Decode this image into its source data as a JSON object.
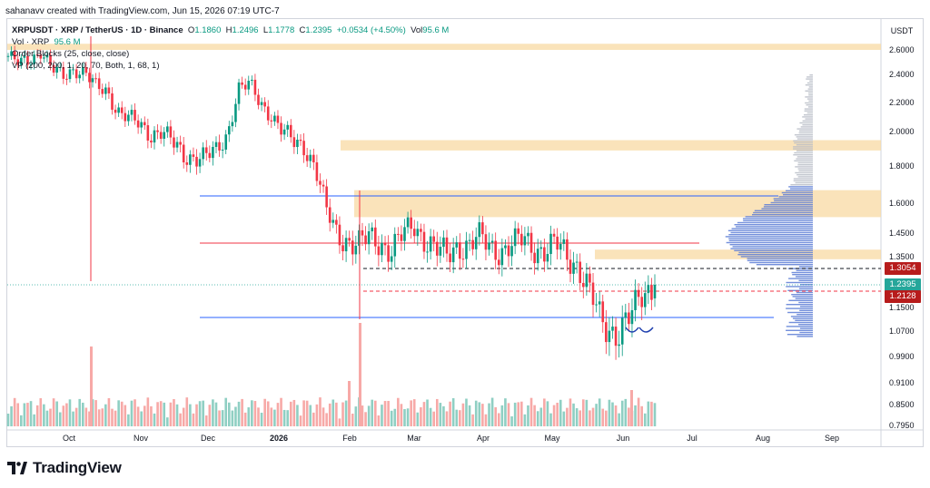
{
  "header": {
    "note": "sahanavv created with TradingView.com, Jun 15, 2026 07:19 UTC-7"
  },
  "legend": {
    "symbol": "XRPUSDT · XRP / TetherUS · 1D · Binance",
    "o_label": "O",
    "o_value": "1.1860",
    "h_label": "H",
    "h_value": "1.2496",
    "l_label": "L",
    "l_value": "1.1778",
    "c_label": "C",
    "c_value": "1.2395",
    "change": "+0.0534 (+4.50%)",
    "vol_label": "Vol",
    "vol_value": "95.6 M",
    "vol_line_label": "Vol · XRP",
    "vol_line_value": "95.6 M",
    "order_blocks": "Order Blocks (25, close, close)",
    "vp": "VP (200, 200, 1, 20, 70, Both, 1, 68, 1)"
  },
  "colors": {
    "up": "#089981",
    "down": "#f23645",
    "up_vol": "#8fcfc3",
    "down_vol": "#f7a9a7",
    "zone": "#f8d9a3",
    "blue_line": "#2962ff",
    "red_line": "#f23645",
    "vp_blue": "#5b7bd5",
    "vp_grey": "#b7bcc6",
    "marker_red": "#b71c1c",
    "marker_price": "#26a69a"
  },
  "price_tags": {
    "resistance": "1.3054",
    "current": "1.2395",
    "support": "1.2128"
  },
  "brand": {
    "name": "TradingView",
    "icon": "tradingview-logo-icon"
  },
  "chart_data": {
    "type": "candlestick",
    "symbol": "XRPUSDT",
    "interval": "1D",
    "exchange": "Binance",
    "currency": "USDT",
    "y_axis_ticks": [
      "2.6000",
      "2.4000",
      "2.2000",
      "2.0000",
      "1.8000",
      "1.6000",
      "1.4500",
      "1.3500",
      "1.1500",
      "1.0700",
      "0.9900",
      "0.9100",
      "0.8500",
      "0.7950"
    ],
    "x_axis_ticks": [
      "Oct",
      "Nov",
      "Dec",
      "2026",
      "Feb",
      "Mar",
      "Apr",
      "May",
      "Jun",
      "Jul",
      "Aug",
      "Sep"
    ],
    "ohlc_close_path": [
      2.55,
      2.48,
      2.52,
      2.6,
      2.44,
      2.38,
      2.45,
      2.42,
      2.3,
      2.28,
      2.15,
      2.09,
      2.04,
      1.99,
      2.01,
      1.93,
      1.86,
      1.86,
      1.85,
      1.88,
      1.99,
      2.3,
      2.32,
      2.2,
      2.12,
      2.0,
      1.94,
      1.92,
      1.8,
      1.56,
      1.45,
      1.42,
      1.4,
      1.43,
      1.41,
      1.38,
      1.44,
      1.49,
      1.43,
      1.38,
      1.35,
      1.4,
      1.4,
      1.43,
      1.39,
      1.38,
      1.4,
      1.42,
      1.39,
      1.38,
      1.4,
      1.35,
      1.32,
      1.22,
      1.1,
      1.07,
      1.09,
      1.13,
      1.2,
      1.24
    ],
    "last": {
      "open": 1.186,
      "high": 1.2496,
      "low": 1.1778,
      "close": 1.2395,
      "change": 0.0534,
      "change_pct": 4.5,
      "volume": "95.6 M"
    },
    "horizontal_levels": [
      {
        "price": 1.66,
        "color": "blue"
      },
      {
        "price": 1.41,
        "color": "red"
      },
      {
        "price": 1.3054,
        "style": "dashed",
        "color": "dark"
      },
      {
        "price": 1.2128,
        "style": "dashed",
        "color": "red"
      },
      {
        "price": 1.11,
        "color": "blue"
      }
    ],
    "order_block_zones": [
      [
        2.6,
        2.65
      ],
      [
        1.89,
        1.95
      ],
      [
        1.53,
        1.67
      ],
      [
        1.34,
        1.38
      ]
    ],
    "volume_profile": true,
    "grid": false
  }
}
